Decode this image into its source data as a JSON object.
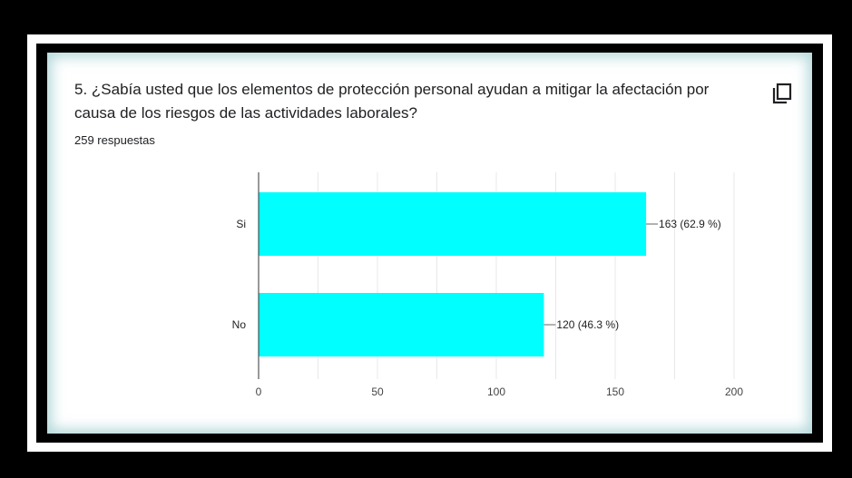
{
  "question": {
    "title": "5. ¿Sabía usted que los elementos de protección personal ayudan a mitigar la afectación por causa de los riesgos de las actividades laborales?",
    "responses": "259 respuestas"
  },
  "icons": {
    "copy": "copy-icon"
  },
  "colors": {
    "bar": "#00ffff",
    "grid": "#e8e8e8",
    "axis": "#333333"
  },
  "chart_data": {
    "type": "bar",
    "orientation": "horizontal",
    "categories": [
      "Si",
      "No"
    ],
    "values": [
      163,
      120
    ],
    "value_labels": [
      "163 (62.9 %)",
      "120 (46.3 %)"
    ],
    "xlim": [
      0,
      200
    ],
    "xticks": [
      "0",
      "50",
      "100",
      "150",
      "200"
    ],
    "grid": true,
    "legend": "none"
  }
}
